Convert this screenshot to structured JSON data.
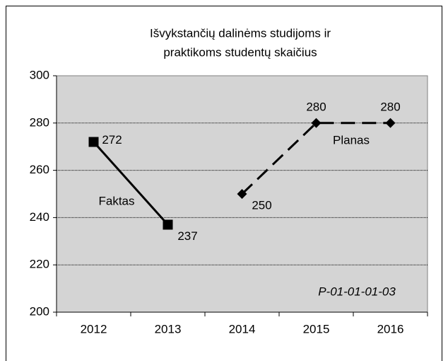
{
  "chart_data": {
    "type": "line",
    "title": [
      "Išvykstančių dalinėms studijoms ir",
      "praktikoms studentų skaičius"
    ],
    "categories": [
      "2012",
      "2013",
      "2014",
      "2015",
      "2016"
    ],
    "series": [
      {
        "name": "Faktas",
        "color": "#000000",
        "dash": "solid",
        "marker": "square",
        "values": [
          272,
          237,
          null,
          null,
          null
        ]
      },
      {
        "name": "Planas",
        "color": "#000000",
        "dash": "dashed",
        "marker": "diamond",
        "values": [
          null,
          null,
          250,
          280,
          280
        ]
      }
    ],
    "ylim": [
      200,
      300
    ],
    "yticks": [
      200,
      220,
      240,
      260,
      280,
      300
    ],
    "grid": true,
    "annotation": "P-01-01-01-03"
  }
}
